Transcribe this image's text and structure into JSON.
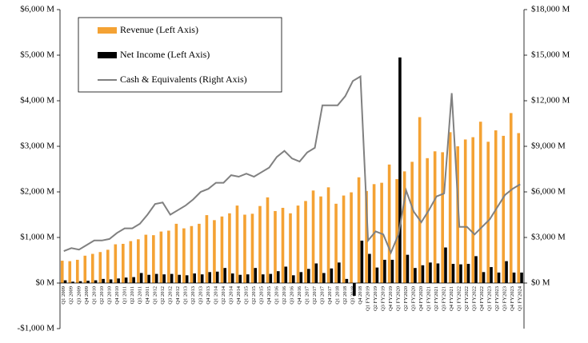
{
  "chart_data": {
    "type": "bar-line",
    "categories": [
      "Q1 2009",
      "Q2 2009",
      "Q3 2009",
      "Q4 2009",
      "Q1 2010",
      "Q2 2010",
      "Q3 2010",
      "Q4 2010",
      "Q1 2011",
      "Q2 2011",
      "Q3 2011",
      "Q4 2011",
      "Q1 2012",
      "Q2 2012",
      "Q3 2012",
      "Q4 2012",
      "Q1 2013",
      "Q2 2013",
      "Q3 2013",
      "Q4 2013",
      "Q1 2014",
      "Q2 2014",
      "Q3 2014",
      "Q4 2014",
      "Q1 2015",
      "Q2 2015",
      "Q3 2015",
      "Q4 2015",
      "Q1 2016",
      "Q2 2016",
      "Q3 2016",
      "Q4 2016",
      "Q1 2017",
      "Q2 2017",
      "Q3 2017",
      "Q4 2017",
      "Q1 2018",
      "Q2 2018",
      "Q3 2018",
      "Q4 2018",
      "Q1 FY2019",
      "Q2 FY2019",
      "Q3 FY2019",
      "Q4 FY2019",
      "Q1 FY2020",
      "Q2 FY2020",
      "Q3 FY2020",
      "Q4 FY2020",
      "Q1 FY2021",
      "Q2 FY2021",
      "Q3 FY2021",
      "Q4 FY2021",
      "Q1 FY2022",
      "Q2 FY2022",
      "Q3 FY2022",
      "Q4 FY2022",
      "Q1 FY2023",
      "Q2 FY2023",
      "Q3 FY2023",
      "Q4 FY2023",
      "Q1 FY2024"
    ],
    "series": [
      {
        "name": "Revenue (Left Axis)",
        "kind": "bar",
        "color": "#f4a234",
        "values": [
          490,
          480,
          510,
          600,
          640,
          680,
          730,
          850,
          860,
          920,
          960,
          1060,
          1050,
          1130,
          1150,
          1300,
          1200,
          1250,
          1300,
          1490,
          1380,
          1460,
          1530,
          1700,
          1500,
          1520,
          1690,
          1880,
          1580,
          1650,
          1530,
          1700,
          1800,
          2030,
          1900,
          2100,
          1740,
          1920,
          1990,
          2320,
          2020,
          2170,
          2200,
          2600,
          2280,
          2450,
          2660,
          3640,
          2740,
          2890,
          2870,
          3310,
          3000,
          3150,
          3200,
          3540,
          3100,
          3350,
          3230,
          3730,
          3290
        ]
      },
      {
        "name": "Net Income (Left Axis)",
        "kind": "bar",
        "color": "#000000",
        "values": [
          60,
          30,
          40,
          50,
          60,
          90,
          80,
          100,
          120,
          130,
          220,
          180,
          200,
          190,
          200,
          180,
          170,
          210,
          190,
          240,
          250,
          330,
          210,
          180,
          190,
          330,
          190,
          200,
          260,
          360,
          170,
          240,
          310,
          430,
          220,
          320,
          450,
          90,
          -280,
          930,
          640,
          340,
          510,
          510,
          4950,
          620,
          330,
          390,
          450,
          430,
          780,
          420,
          410,
          420,
          590,
          240,
          350,
          230,
          480,
          230,
          230
        ]
      },
      {
        "name": "Cash & Equivalents (Right Axis)",
        "kind": "line",
        "axis": "y2",
        "color": "#808080",
        "values": [
          2100,
          2300,
          2200,
          2500,
          2800,
          2800,
          2900,
          3300,
          3600,
          3600,
          3900,
          4500,
          5200,
          5300,
          4500,
          4800,
          5100,
          5500,
          6000,
          6200,
          6600,
          6600,
          7100,
          7000,
          7200,
          7000,
          7300,
          7600,
          8300,
          8700,
          8200,
          8000,
          8600,
          8900,
          11700,
          11700,
          11700,
          12300,
          13300,
          13600,
          2800,
          3400,
          3200,
          2000,
          3200,
          6100,
          4700,
          4000,
          4800,
          5700,
          5900,
          12500,
          3700,
          3700,
          3200,
          3700,
          4200,
          5000,
          5800,
          6200,
          6500
        ]
      }
    ],
    "ylim": [
      -1000,
      6000
    ],
    "yticks": [
      {
        "value": -1000,
        "label": "-$1,000 M"
      },
      {
        "value": 0,
        "label": "$0 M"
      },
      {
        "value": 1000,
        "label": "$1,000 M"
      },
      {
        "value": 2000,
        "label": "$2,000 M"
      },
      {
        "value": 3000,
        "label": "$3,000 M"
      },
      {
        "value": 4000,
        "label": "$4,000 M"
      },
      {
        "value": 5000,
        "label": "$5,000 M"
      },
      {
        "value": 6000,
        "label": "$6,000 M"
      }
    ],
    "y2lim": [
      -3000,
      18000
    ],
    "y2ticks": [
      {
        "value": 0,
        "label": "$0 M"
      },
      {
        "value": 3000,
        "label": "$3,000 M"
      },
      {
        "value": 6000,
        "label": "$6,000 M"
      },
      {
        "value": 9000,
        "label": "$9,000 M"
      },
      {
        "value": 12000,
        "label": "$12,000 M"
      },
      {
        "value": 15000,
        "label": "$15,000 M"
      },
      {
        "value": 18000,
        "label": "$18,000 M"
      }
    ],
    "legend": "upper left",
    "grid": false
  }
}
